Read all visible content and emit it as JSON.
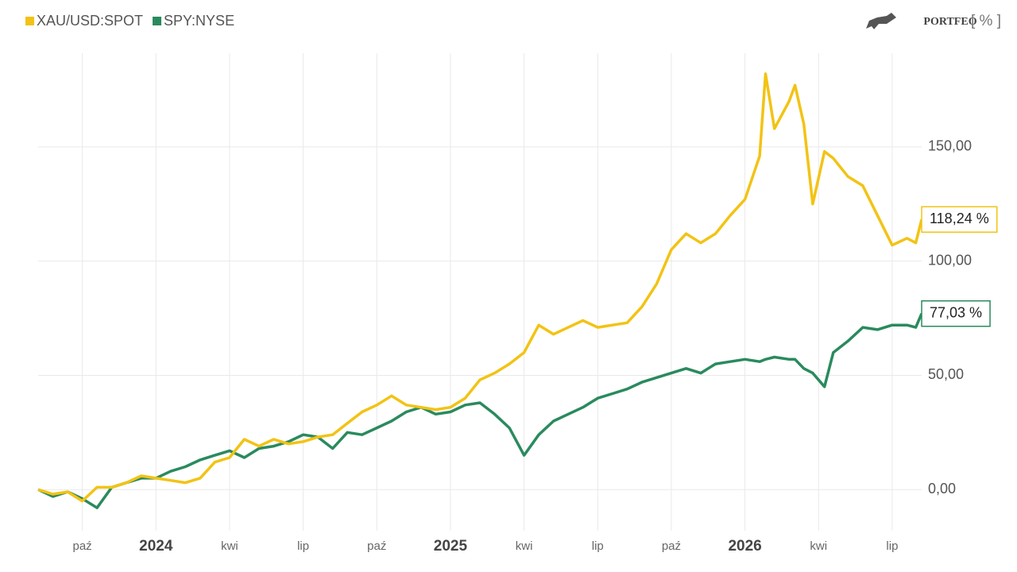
{
  "chart_data": {
    "type": "line",
    "brand": "PORTFEO",
    "unit_label": "[ % ]",
    "x": [
      2023.6,
      2023.65,
      2023.7,
      2023.75,
      2023.8,
      2023.85,
      2023.9,
      2023.95,
      2024.0,
      2024.05,
      2024.1,
      2024.15,
      2024.2,
      2024.25,
      2024.3,
      2024.35,
      2024.4,
      2024.45,
      2024.5,
      2024.55,
      2024.6,
      2024.65,
      2024.7,
      2024.75,
      2024.8,
      2024.85,
      2024.9,
      2024.95,
      2025.0,
      2025.05,
      2025.1,
      2025.15,
      2025.2,
      2025.25,
      2025.3,
      2025.35,
      2025.4,
      2025.45,
      2025.5,
      2025.55,
      2025.6,
      2025.65,
      2025.7,
      2025.75,
      2025.8,
      2025.85,
      2025.9,
      2025.95,
      2026.0,
      2026.05,
      2026.07,
      2026.1,
      2026.15,
      2026.17,
      2026.2,
      2026.23,
      2026.27,
      2026.3,
      2026.35,
      2026.4,
      2026.45,
      2026.5,
      2026.55,
      2026.58,
      2026.6
    ],
    "series": [
      {
        "name": "XAU/USD:SPOT",
        "color": "#f2c314",
        "values": [
          0,
          -2,
          -1,
          -5,
          1,
          1,
          3,
          6,
          5,
          4,
          3,
          5,
          12,
          14,
          22,
          19,
          22,
          20,
          21,
          23,
          24,
          29,
          34,
          37,
          41,
          37,
          36,
          35,
          36,
          40,
          48,
          51,
          55,
          60,
          72,
          68,
          71,
          74,
          71,
          72,
          73,
          80,
          90,
          105,
          112,
          108,
          112,
          120,
          127,
          146,
          182,
          158,
          170,
          177,
          160,
          125,
          148,
          145,
          137,
          133,
          120,
          107,
          110,
          108,
          118.24
        ],
        "value_labels": [
          null,
          null,
          null,
          null,
          null,
          null,
          null,
          null,
          null,
          null,
          null,
          null,
          null,
          null,
          null,
          null,
          null,
          null,
          null,
          null,
          null,
          null,
          null,
          null,
          null,
          null,
          null,
          null,
          null,
          null,
          null,
          null,
          null,
          null,
          null,
          null,
          null,
          null,
          null,
          null,
          null,
          null,
          null,
          null,
          null,
          null,
          null,
          null,
          null,
          null,
          null,
          null,
          null,
          null,
          null,
          null,
          null,
          null,
          null,
          null,
          null,
          null,
          null,
          null,
          "118,24 %"
        ]
      },
      {
        "name": "SPY:NYSE",
        "color": "#2a8a5e",
        "values": [
          0,
          -3,
          -1,
          -4,
          -8,
          1,
          3,
          5,
          5,
          8,
          10,
          13,
          15,
          17,
          14,
          18,
          19,
          21,
          24,
          23,
          18,
          25,
          24,
          27,
          30,
          34,
          36,
          33,
          34,
          37,
          38,
          33,
          27,
          15,
          24,
          30,
          33,
          36,
          40,
          42,
          44,
          47,
          49,
          51,
          53,
          51,
          55,
          56,
          57,
          56,
          57,
          58,
          57,
          57,
          53,
          51,
          45,
          60,
          65,
          71,
          70,
          72,
          72,
          71,
          77.03
        ],
        "value_labels": [
          null,
          null,
          null,
          null,
          null,
          null,
          null,
          null,
          null,
          null,
          null,
          null,
          null,
          null,
          null,
          null,
          null,
          null,
          null,
          null,
          null,
          null,
          null,
          null,
          null,
          null,
          null,
          null,
          null,
          null,
          null,
          null,
          null,
          null,
          null,
          null,
          null,
          null,
          null,
          null,
          null,
          null,
          null,
          null,
          null,
          null,
          null,
          null,
          null,
          null,
          null,
          null,
          null,
          null,
          null,
          null,
          null,
          null,
          null,
          null,
          null,
          null,
          null,
          null,
          "77,03 %"
        ]
      }
    ],
    "xlim": [
      2023.6,
      2026.6
    ],
    "xticks": [
      {
        "value": 2023.75,
        "label": "paź"
      },
      {
        "value": 2024,
        "label": "2024"
      },
      {
        "value": 2024.25,
        "label": "kwi"
      },
      {
        "value": 2024.5,
        "label": "lip"
      },
      {
        "value": 2024.75,
        "label": "paź"
      },
      {
        "value": 2025,
        "label": "2025"
      },
      {
        "value": 2025.25,
        "label": "kwi"
      },
      {
        "value": 2025.5,
        "label": "lip"
      },
      {
        "value": 2025.75,
        "label": "paź"
      },
      {
        "value": 2026,
        "label": "2026"
      },
      {
        "value": 2026.25,
        "label": "kwi"
      },
      {
        "value": 2026.5,
        "label": "lip"
      }
    ],
    "ylim": [
      -18,
      191
    ],
    "yticks": [
      {
        "value": 0,
        "label": "0,00"
      },
      {
        "value": 50,
        "label": "50,00"
      },
      {
        "value": 100,
        "label": "100,00"
      },
      {
        "value": 150,
        "label": "150,00"
      }
    ],
    "grid": true
  }
}
